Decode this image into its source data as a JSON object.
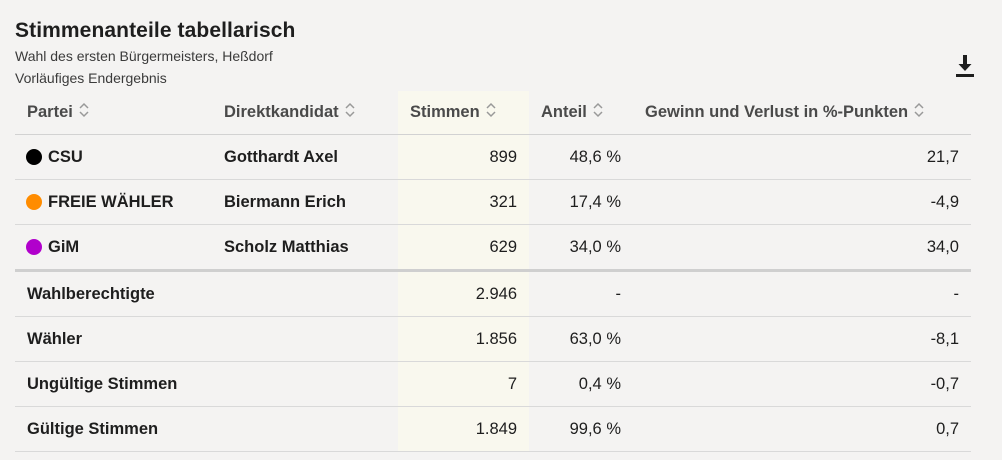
{
  "header": {
    "title": "Stimmenanteile tabellarisch",
    "subtitle1": "Wahl des ersten Bürgermeisters, Heßdorf",
    "subtitle2": "Vorläufiges Endergebnis"
  },
  "icons": {
    "download": "download-icon",
    "sort": "sort-icon"
  },
  "table": {
    "columns": [
      "Partei",
      "Direktkandidat",
      "Stimmen",
      "Anteil",
      "Gewinn und Verlust in %-Punkten"
    ],
    "rows": [
      {
        "party": "CSU",
        "color": "#000000",
        "candidate": "Gotthardt Axel",
        "votes": "899",
        "share": "48,6 %",
        "change": "21,7"
      },
      {
        "party": "FREIE WÄHLER",
        "color": "#ff8c00",
        "candidate": "Biermann Erich",
        "votes": "321",
        "share": "17,4 %",
        "change": "-4,9"
      },
      {
        "party": "GiM",
        "color": "#b100cc",
        "candidate": "Scholz Matthias",
        "votes": "629",
        "share": "34,0 %",
        "change": "34,0"
      }
    ],
    "summary": [
      {
        "label": "Wahlberechtigte",
        "votes": "2.946",
        "share": "-",
        "change": "-"
      },
      {
        "label": "Wähler",
        "votes": "1.856",
        "share": "63,0 %",
        "change": "-8,1"
      },
      {
        "label": "Ungültige Stimmen",
        "votes": "7",
        "share": "0,4 %",
        "change": "-0,7"
      },
      {
        "label": "Gültige Stimmen",
        "votes": "1.849",
        "share": "99,6 %",
        "change": "0,7"
      }
    ]
  }
}
